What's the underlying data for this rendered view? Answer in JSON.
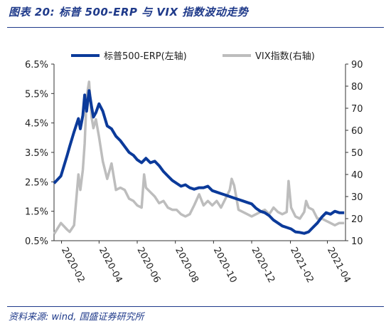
{
  "figure": {
    "title": "图表 20:  标普 500-ERP 与 VIX 指数波动走势",
    "source": "资料来源: wind, 国盛证券研究所"
  },
  "colors": {
    "erp": "#0b3a9a",
    "vix": "#bdbdbd",
    "accent": "#1f3a8a"
  },
  "chart_data": {
    "type": "line",
    "title": "",
    "xlabel": "",
    "ylabel_left": "",
    "ylabel_right": "",
    "x_ticks": [
      "2020-02",
      "2020-04",
      "2020-06",
      "2020-08",
      "2020-10",
      "2020-12",
      "2021-02",
      "2021-04"
    ],
    "x_range": [
      "2020-01-20",
      "2021-04-30"
    ],
    "y_left": {
      "range": [
        0.5,
        6.5
      ],
      "ticks": [
        "0.5%",
        "1.5%",
        "2.5%",
        "3.5%",
        "4.5%",
        "5.5%",
        "6.5%"
      ]
    },
    "y_right": {
      "range": [
        10,
        90
      ],
      "ticks": [
        "10",
        "20",
        "30",
        "40",
        "50",
        "60",
        "70",
        "80",
        "90"
      ]
    },
    "legend": {
      "placement": "top"
    },
    "series": [
      {
        "name": "标普500-ERP(左轴)",
        "axis": "left",
        "unit": "%",
        "points": [
          [
            "2020-01-20",
            2.45
          ],
          [
            "2020-01-31",
            2.7
          ],
          [
            "2020-02-10",
            3.4
          ],
          [
            "2020-02-14",
            3.7
          ],
          [
            "2020-02-21",
            4.2
          ],
          [
            "2020-02-28",
            4.65
          ],
          [
            "2020-03-02",
            4.3
          ],
          [
            "2020-03-06",
            4.75
          ],
          [
            "2020-03-09",
            5.45
          ],
          [
            "2020-03-12",
            4.9
          ],
          [
            "2020-03-16",
            5.6
          ],
          [
            "2020-03-20",
            5.05
          ],
          [
            "2020-03-23",
            4.7
          ],
          [
            "2020-03-27",
            4.85
          ],
          [
            "2020-04-01",
            5.15
          ],
          [
            "2020-04-07",
            4.9
          ],
          [
            "2020-04-14",
            4.4
          ],
          [
            "2020-04-21",
            4.3
          ],
          [
            "2020-04-28",
            4.05
          ],
          [
            "2020-05-05",
            3.9
          ],
          [
            "2020-05-12",
            3.7
          ],
          [
            "2020-05-19",
            3.5
          ],
          [
            "2020-05-26",
            3.4
          ],
          [
            "2020-06-01",
            3.25
          ],
          [
            "2020-06-08",
            3.15
          ],
          [
            "2020-06-15",
            3.3
          ],
          [
            "2020-06-22",
            3.15
          ],
          [
            "2020-06-29",
            3.2
          ],
          [
            "2020-07-06",
            3.05
          ],
          [
            "2020-07-13",
            2.85
          ],
          [
            "2020-07-20",
            2.7
          ],
          [
            "2020-07-27",
            2.55
          ],
          [
            "2020-08-03",
            2.45
          ],
          [
            "2020-08-10",
            2.35
          ],
          [
            "2020-08-17",
            2.4
          ],
          [
            "2020-08-24",
            2.3
          ],
          [
            "2020-08-31",
            2.25
          ],
          [
            "2020-09-08",
            2.3
          ],
          [
            "2020-09-15",
            2.3
          ],
          [
            "2020-09-22",
            2.35
          ],
          [
            "2020-09-29",
            2.2
          ],
          [
            "2020-10-06",
            2.15
          ],
          [
            "2020-10-13",
            2.1
          ],
          [
            "2020-10-20",
            2.05
          ],
          [
            "2020-10-27",
            2.0
          ],
          [
            "2020-11-03",
            1.95
          ],
          [
            "2020-11-10",
            1.9
          ],
          [
            "2020-11-17",
            1.85
          ],
          [
            "2020-11-24",
            1.8
          ],
          [
            "2020-12-01",
            1.75
          ],
          [
            "2020-12-08",
            1.6
          ],
          [
            "2020-12-15",
            1.5
          ],
          [
            "2020-12-22",
            1.45
          ],
          [
            "2020-12-29",
            1.35
          ],
          [
            "2021-01-05",
            1.2
          ],
          [
            "2021-01-12",
            1.1
          ],
          [
            "2021-01-19",
            1.0
          ],
          [
            "2021-01-26",
            0.95
          ],
          [
            "2021-02-02",
            0.9
          ],
          [
            "2021-02-09",
            0.8
          ],
          [
            "2021-02-16",
            0.78
          ],
          [
            "2021-02-23",
            0.75
          ],
          [
            "2021-03-02",
            0.8
          ],
          [
            "2021-03-09",
            0.95
          ],
          [
            "2021-03-16",
            1.1
          ],
          [
            "2021-03-23",
            1.3
          ],
          [
            "2021-03-30",
            1.45
          ],
          [
            "2021-04-06",
            1.4
          ],
          [
            "2021-04-13",
            1.5
          ],
          [
            "2021-04-20",
            1.45
          ],
          [
            "2021-04-28",
            1.45
          ]
        ]
      },
      {
        "name": "VIX指数(右轴)",
        "axis": "right",
        "unit": "",
        "points": [
          [
            "2020-01-20",
            13
          ],
          [
            "2020-01-31",
            18
          ],
          [
            "2020-02-10",
            15
          ],
          [
            "2020-02-14",
            14
          ],
          [
            "2020-02-21",
            17
          ],
          [
            "2020-02-28",
            40
          ],
          [
            "2020-03-02",
            33
          ],
          [
            "2020-03-06",
            42
          ],
          [
            "2020-03-09",
            54
          ],
          [
            "2020-03-12",
            75
          ],
          [
            "2020-03-16",
            82
          ],
          [
            "2020-03-20",
            66
          ],
          [
            "2020-03-23",
            61
          ],
          [
            "2020-03-27",
            65
          ],
          [
            "2020-04-01",
            57
          ],
          [
            "2020-04-07",
            46
          ],
          [
            "2020-04-14",
            38
          ],
          [
            "2020-04-21",
            45
          ],
          [
            "2020-04-28",
            33
          ],
          [
            "2020-05-05",
            34
          ],
          [
            "2020-05-12",
            33
          ],
          [
            "2020-05-19",
            29
          ],
          [
            "2020-05-26",
            28
          ],
          [
            "2020-06-01",
            26
          ],
          [
            "2020-06-08",
            25
          ],
          [
            "2020-06-12",
            40
          ],
          [
            "2020-06-15",
            34
          ],
          [
            "2020-06-22",
            32
          ],
          [
            "2020-06-29",
            30
          ],
          [
            "2020-07-06",
            27
          ],
          [
            "2020-07-13",
            28
          ],
          [
            "2020-07-20",
            25
          ],
          [
            "2020-07-27",
            24
          ],
          [
            "2020-08-03",
            24
          ],
          [
            "2020-08-10",
            22
          ],
          [
            "2020-08-17",
            21
          ],
          [
            "2020-08-24",
            22
          ],
          [
            "2020-08-31",
            26
          ],
          [
            "2020-09-08",
            31
          ],
          [
            "2020-09-15",
            26
          ],
          [
            "2020-09-22",
            28
          ],
          [
            "2020-09-29",
            26
          ],
          [
            "2020-10-06",
            28
          ],
          [
            "2020-10-13",
            25
          ],
          [
            "2020-10-20",
            29
          ],
          [
            "2020-10-27",
            33
          ],
          [
            "2020-10-30",
            38
          ],
          [
            "2020-11-03",
            35
          ],
          [
            "2020-11-10",
            24
          ],
          [
            "2020-11-17",
            23
          ],
          [
            "2020-11-24",
            22
          ],
          [
            "2020-12-01",
            21
          ],
          [
            "2020-12-08",
            22
          ],
          [
            "2020-12-15",
            23
          ],
          [
            "2020-12-22",
            24
          ],
          [
            "2020-12-29",
            22
          ],
          [
            "2021-01-05",
            25
          ],
          [
            "2021-01-12",
            23
          ],
          [
            "2021-01-19",
            22
          ],
          [
            "2021-01-26",
            23
          ],
          [
            "2021-01-29",
            37
          ],
          [
            "2021-02-02",
            25
          ],
          [
            "2021-02-09",
            21
          ],
          [
            "2021-02-16",
            20
          ],
          [
            "2021-02-23",
            23
          ],
          [
            "2021-02-26",
            28
          ],
          [
            "2021-03-02",
            25
          ],
          [
            "2021-03-09",
            24
          ],
          [
            "2021-03-16",
            20
          ],
          [
            "2021-03-23",
            20
          ],
          [
            "2021-03-30",
            19
          ],
          [
            "2021-04-06",
            18
          ],
          [
            "2021-04-13",
            17
          ],
          [
            "2021-04-20",
            18
          ],
          [
            "2021-04-28",
            18
          ]
        ]
      }
    ]
  }
}
